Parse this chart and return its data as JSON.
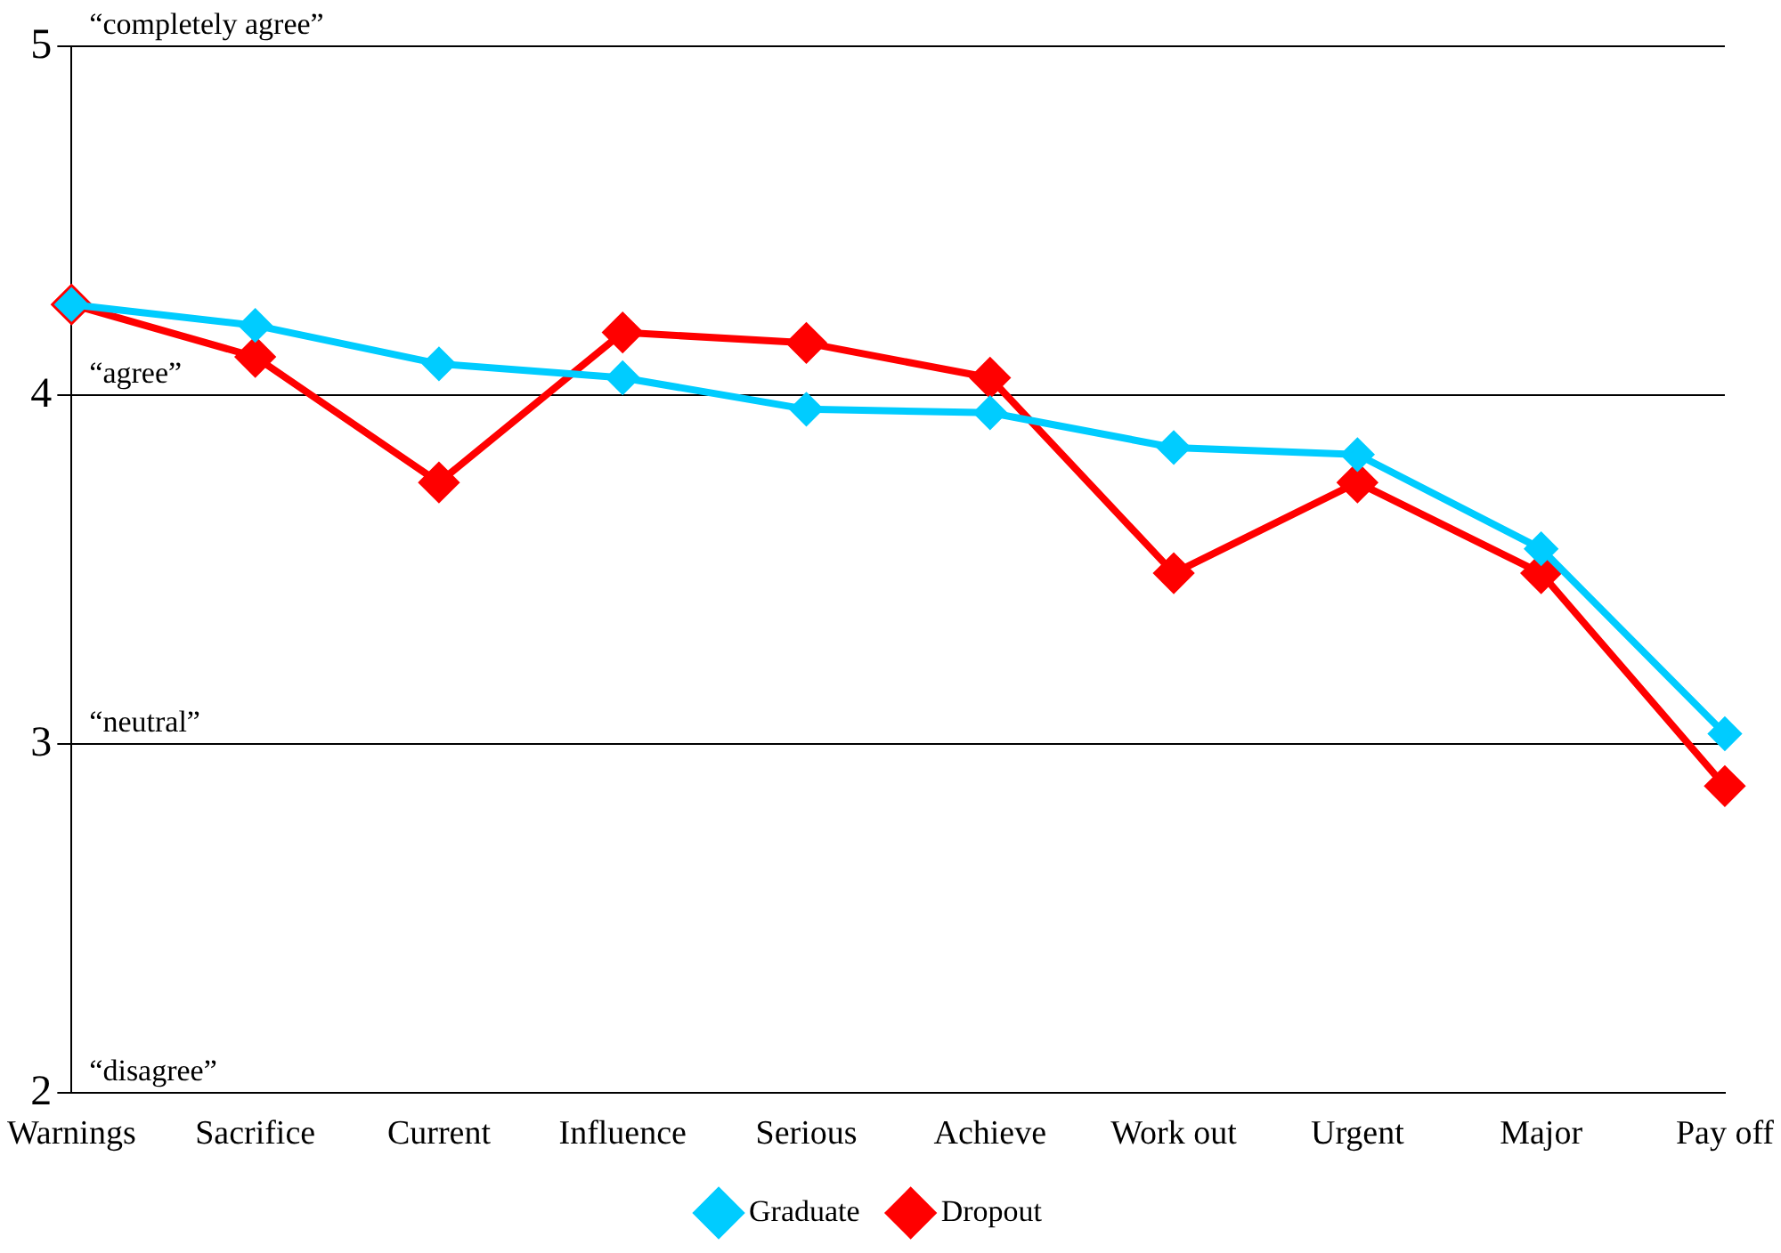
{
  "chart_data": {
    "type": "line",
    "categories": [
      "Warnings",
      "Sacrifice",
      "Current",
      "Influence",
      "Serious",
      "Achieve",
      "Work out",
      "Urgent",
      "Major",
      "Pay off"
    ],
    "series": [
      {
        "name": "Dropout",
        "color": "#ff0000",
        "values": [
          4.26,
          4.11,
          3.75,
          4.18,
          4.15,
          4.05,
          3.49,
          3.75,
          3.49,
          2.88
        ]
      },
      {
        "name": "Graduate",
        "color": "#00ccff",
        "values": [
          4.26,
          4.2,
          4.09,
          4.05,
          3.96,
          3.95,
          3.85,
          3.83,
          3.56,
          3.03
        ]
      }
    ],
    "ylim": [
      2,
      5
    ],
    "yticks": [
      2,
      3,
      4,
      5
    ],
    "grid": "y",
    "legend": "bottom",
    "marker": "diamond",
    "line_style": "solid",
    "annotations": [
      "“completely agree”",
      "“agree”",
      "“neutral”",
      "“disagree”"
    ]
  }
}
